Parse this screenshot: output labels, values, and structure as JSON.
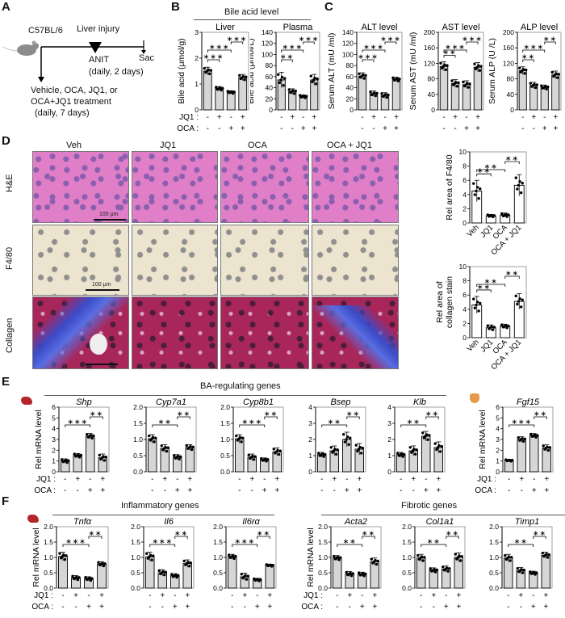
{
  "panels": {
    "A": {
      "label": "A",
      "strain": "C57BL/6",
      "injury_label": "Liver injury",
      "anit_label": "ANIT",
      "anit_schedule": "(daily, 2 days)",
      "sac_label": "Sac",
      "treatment_line1": "Vehicle, OCA, JQ1, or",
      "treatment_line2": "OCA+JQ1 treatment",
      "treatment_line3": "(daily, 7 days)"
    },
    "B": {
      "label": "B",
      "group_title": "Bile acid level"
    },
    "C": {
      "label": "C"
    },
    "D": {
      "label": "D",
      "columns": [
        "Veh",
        "JQ1",
        "OCA",
        "OCA + JQ1"
      ],
      "rows": [
        "H&E",
        "F4/80",
        "Collagen"
      ],
      "scale_bar": "100 μm"
    },
    "E": {
      "label": "E",
      "group_title": "BA-regulating genes"
    },
    "F": {
      "label": "F",
      "group_title_left": "Inflammatory genes",
      "group_title_right": "Fibrotic genes"
    }
  },
  "treatment_rows": {
    "jq1_label": "JQ1 :",
    "oca_label": "OCA :",
    "jq1": [
      "-",
      "+",
      "-",
      "+"
    ],
    "oca": [
      "-",
      "-",
      "+",
      "+"
    ]
  },
  "chart_data": [
    {
      "id": "B-liver",
      "type": "bar",
      "title": "Liver",
      "ylabel": "Bile acid (μmol/g)",
      "ylim": [
        0,
        3
      ],
      "yticks": [
        0,
        1,
        2,
        3
      ],
      "categories": [
        "Veh",
        "JQ1",
        "OCA",
        "OCA+JQ1"
      ],
      "values": [
        1.5,
        0.82,
        0.68,
        1.25
      ],
      "errors": [
        0.15,
        0.08,
        0.06,
        0.12
      ],
      "significance": [
        {
          "from": 0,
          "to": 1,
          "label": "***"
        },
        {
          "from": 0,
          "to": 2,
          "label": "***"
        },
        {
          "from": 2,
          "to": 3,
          "label": "***"
        }
      ]
    },
    {
      "id": "B-plasma",
      "type": "bar",
      "title": "Plasma",
      "ylabel": "Bile acid (μmol/L)",
      "ylim": [
        0,
        140
      ],
      "yticks": [
        0,
        20,
        40,
        60,
        80,
        100,
        120,
        140
      ],
      "categories": [
        "Veh",
        "JQ1",
        "OCA",
        "OCA+JQ1"
      ],
      "values": [
        54,
        33,
        24,
        54
      ],
      "errors": [
        14,
        5,
        3,
        10
      ],
      "significance": [
        {
          "from": 0,
          "to": 1,
          "label": "**"
        },
        {
          "from": 0,
          "to": 2,
          "label": "***"
        },
        {
          "from": 2,
          "to": 3,
          "label": "***"
        }
      ]
    },
    {
      "id": "C-alt",
      "type": "bar",
      "title": "ALT level",
      "ylabel": "Serum ALT (mU /ml)",
      "ylim": [
        0,
        140
      ],
      "yticks": [
        0,
        20,
        40,
        60,
        80,
        100,
        120,
        140
      ],
      "categories": [
        "Veh",
        "JQ1",
        "OCA",
        "OCA+JQ1"
      ],
      "values": [
        61,
        29,
        26,
        55
      ],
      "errors": [
        6,
        5,
        5,
        4
      ],
      "significance": [
        {
          "from": 0,
          "to": 1,
          "label": "***"
        },
        {
          "from": 0,
          "to": 2,
          "label": "***"
        },
        {
          "from": 2,
          "to": 3,
          "label": "***"
        }
      ]
    },
    {
      "id": "C-ast",
      "type": "bar",
      "title": "AST level",
      "ylabel": "Serum AST (mU /ml)",
      "ylim": [
        0,
        200
      ],
      "yticks": [
        0,
        40,
        80,
        120,
        160,
        200
      ],
      "categories": [
        "Veh",
        "JQ1",
        "OCA",
        "OCA+JQ1"
      ],
      "values": [
        112,
        68,
        65,
        110
      ],
      "errors": [
        12,
        10,
        10,
        12
      ],
      "significance": [
        {
          "from": 0,
          "to": 1,
          "label": "**"
        },
        {
          "from": 0,
          "to": 2,
          "label": "***"
        },
        {
          "from": 2,
          "to": 3,
          "label": "***"
        }
      ]
    },
    {
      "id": "C-alp",
      "type": "bar",
      "title": "ALP level",
      "ylabel": "Serum ALP (U /L)",
      "ylim": [
        0,
        200
      ],
      "yticks": [
        0,
        40,
        80,
        120,
        160,
        200
      ],
      "categories": [
        "Veh",
        "JQ1",
        "OCA",
        "OCA+JQ1"
      ],
      "values": [
        101,
        63,
        58,
        90
      ],
      "errors": [
        10,
        8,
        6,
        10
      ],
      "significance": [
        {
          "from": 0,
          "to": 1,
          "label": "**"
        },
        {
          "from": 0,
          "to": 2,
          "label": "***"
        },
        {
          "from": 2,
          "to": 3,
          "label": "**"
        }
      ]
    },
    {
      "id": "D-f480",
      "type": "bar",
      "ylabel": "Rel area of F4/80",
      "ylim": [
        0,
        10
      ],
      "yticks": [
        0,
        2,
        4,
        6,
        8,
        10
      ],
      "categories": [
        "Veh",
        "JQ1",
        "OCA",
        "OCA + JQ1"
      ],
      "values": [
        4.5,
        1.0,
        1.1,
        5.3
      ],
      "errors": [
        1.5,
        0.2,
        0.3,
        1.5
      ],
      "white_bars": true,
      "significance": [
        {
          "from": 0,
          "to": 1,
          "label": "**"
        },
        {
          "from": 0,
          "to": 2,
          "label": "**"
        },
        {
          "from": 2,
          "to": 3,
          "label": "**"
        }
      ]
    },
    {
      "id": "D-collagen",
      "type": "bar",
      "ylabel": "Rel area of collagen stain",
      "ylim": [
        0,
        10
      ],
      "yticks": [
        0,
        2,
        4,
        6,
        8,
        10
      ],
      "categories": [
        "Veh",
        "JQ1",
        "OCA",
        "OCA + JQ1"
      ],
      "values": [
        4.6,
        1.4,
        1.6,
        5.1
      ],
      "errors": [
        1.2,
        0.4,
        0.3,
        1.1
      ],
      "white_bars": true,
      "significance": [
        {
          "from": 0,
          "to": 1,
          "label": "**"
        },
        {
          "from": 0,
          "to": 2,
          "label": "**"
        },
        {
          "from": 2,
          "to": 3,
          "label": "**"
        }
      ]
    },
    {
      "id": "E-shp",
      "type": "bar",
      "title": "Shp",
      "ylabel": "Rel mRNA level",
      "ylim": [
        0,
        6
      ],
      "yticks": [
        0,
        1,
        2,
        3,
        4,
        5,
        6
      ],
      "categories": [
        "Veh",
        "JQ1",
        "OCA",
        "OCA+JQ1"
      ],
      "values": [
        1.0,
        1.5,
        3.3,
        1.3
      ],
      "errors": [
        0.2,
        0.2,
        0.25,
        0.35
      ],
      "significance": [
        {
          "from": 0,
          "to": 2,
          "label": "***"
        },
        {
          "from": 2,
          "to": 3,
          "label": "**"
        }
      ]
    },
    {
      "id": "E-cyp7a1",
      "type": "bar",
      "title": "Cyp7a1",
      "ylim": [
        0,
        2
      ],
      "yticks": [
        0,
        0.5,
        1.0,
        1.5,
        2.0
      ],
      "categories": [
        "Veh",
        "JQ1",
        "OCA",
        "OCA+JQ1"
      ],
      "values": [
        1.02,
        0.72,
        0.45,
        0.75
      ],
      "errors": [
        0.13,
        0.12,
        0.08,
        0.09
      ],
      "significance": [
        {
          "from": 0,
          "to": 2,
          "label": "**"
        },
        {
          "from": 2,
          "to": 3,
          "label": "**"
        }
      ]
    },
    {
      "id": "E-cyp8b1",
      "type": "bar",
      "title": "Cyp8b1",
      "ylim": [
        0,
        2
      ],
      "yticks": [
        0,
        0.5,
        1.0,
        1.5,
        2.0
      ],
      "categories": [
        "Veh",
        "JQ1",
        "OCA",
        "OCA+JQ1"
      ],
      "values": [
        1.02,
        0.45,
        0.37,
        0.62
      ],
      "errors": [
        0.13,
        0.1,
        0.06,
        0.12
      ],
      "significance": [
        {
          "from": 0,
          "to": 2,
          "label": "***"
        },
        {
          "from": 2,
          "to": 3,
          "label": "**"
        }
      ]
    },
    {
      "id": "E-bsep",
      "type": "bar",
      "title": "Bsep",
      "ylim": [
        0,
        4
      ],
      "yticks": [
        0,
        1,
        2,
        3,
        4
      ],
      "categories": [
        "Veh",
        "JQ1",
        "OCA",
        "OCA+JQ1"
      ],
      "values": [
        1.05,
        1.3,
        2.0,
        1.4
      ],
      "errors": [
        0.15,
        0.3,
        0.45,
        0.35
      ],
      "significance": [
        {
          "from": 0,
          "to": 2,
          "label": "**"
        },
        {
          "from": 2,
          "to": 3,
          "label": "**"
        }
      ]
    },
    {
      "id": "E-klb",
      "type": "bar",
      "title": "Klb",
      "ylim": [
        0,
        4
      ],
      "yticks": [
        0,
        1,
        2,
        3,
        4
      ],
      "categories": [
        "Veh",
        "JQ1",
        "OCA",
        "OCA+JQ1"
      ],
      "values": [
        1.05,
        1.3,
        2.2,
        1.5
      ],
      "errors": [
        0.15,
        0.3,
        0.3,
        0.35
      ],
      "significance": [
        {
          "from": 0,
          "to": 2,
          "label": "**"
        },
        {
          "from": 2,
          "to": 3,
          "label": "**"
        }
      ]
    },
    {
      "id": "E-fgf15",
      "type": "bar",
      "title": "Fgf15",
      "ylabel": "Rel mRNA level",
      "ylim": [
        0,
        6
      ],
      "yticks": [
        0,
        1,
        2,
        3,
        4,
        5,
        6
      ],
      "categories": [
        "Veh",
        "JQ1",
        "OCA",
        "OCA+JQ1"
      ],
      "values": [
        1.05,
        3.0,
        3.35,
        2.2
      ],
      "errors": [
        0.1,
        0.25,
        0.2,
        0.3
      ],
      "significance": [
        {
          "from": 0,
          "to": 2,
          "label": "***"
        },
        {
          "from": 2,
          "to": 3,
          "label": "**"
        }
      ]
    },
    {
      "id": "F-tnfa",
      "type": "bar",
      "title": "Tnfα",
      "ylabel": "Rel mRNA level",
      "ylim": [
        0,
        2
      ],
      "yticks": [
        0,
        0.5,
        1.0,
        1.5,
        2.0
      ],
      "categories": [
        "Veh",
        "JQ1",
        "OCA",
        "OCA+JQ1"
      ],
      "values": [
        1.03,
        0.33,
        0.3,
        0.78
      ],
      "errors": [
        0.14,
        0.08,
        0.07,
        0.08
      ],
      "significance": [
        {
          "from": 0,
          "to": 2,
          "label": "***"
        },
        {
          "from": 2,
          "to": 3,
          "label": "**"
        }
      ]
    },
    {
      "id": "F-il6",
      "type": "bar",
      "title": "Il6",
      "ylim": [
        0,
        2
      ],
      "yticks": [
        0,
        0.5,
        1.0,
        1.5,
        2.0
      ],
      "categories": [
        "Veh",
        "JQ1",
        "OCA",
        "OCA+JQ1"
      ],
      "values": [
        1.02,
        0.5,
        0.4,
        0.8
      ],
      "errors": [
        0.15,
        0.1,
        0.07,
        0.12
      ],
      "significance": [
        {
          "from": 0,
          "to": 2,
          "label": "***"
        },
        {
          "from": 2,
          "to": 3,
          "label": "**"
        }
      ]
    },
    {
      "id": "F-il6ra",
      "type": "bar",
      "title": "Il6rα",
      "ylim": [
        0,
        2
      ],
      "yticks": [
        0,
        0.5,
        1.0,
        1.5,
        2.0
      ],
      "categories": [
        "Veh",
        "JQ1",
        "OCA",
        "OCA+JQ1"
      ],
      "values": [
        1.02,
        0.37,
        0.27,
        0.74
      ],
      "errors": [
        0.08,
        0.12,
        0.05,
        0.04
      ],
      "significance": [
        {
          "from": 0,
          "to": 2,
          "label": "***"
        },
        {
          "from": 2,
          "to": 3,
          "label": "**"
        }
      ]
    },
    {
      "id": "F-acta2",
      "type": "bar",
      "title": "Acta2",
      "ylabel": "Rel mRNA level",
      "ylim": [
        0,
        2
      ],
      "yticks": [
        0,
        0.5,
        1.0,
        1.5,
        2.0
      ],
      "categories": [
        "Veh",
        "JQ1",
        "OCA",
        "OCA+JQ1"
      ],
      "values": [
        0.98,
        0.46,
        0.45,
        0.86
      ],
      "errors": [
        0.08,
        0.08,
        0.07,
        0.12
      ],
      "significance": [
        {
          "from": 0,
          "to": 2,
          "label": "**"
        },
        {
          "from": 2,
          "to": 3,
          "label": "**"
        }
      ]
    },
    {
      "id": "F-col1a1",
      "type": "bar",
      "title": "Col1a1",
      "ylim": [
        0,
        2
      ],
      "yticks": [
        0,
        0.5,
        1.0,
        1.5,
        2.0
      ],
      "categories": [
        "Veh",
        "JQ1",
        "OCA",
        "OCA+JQ1"
      ],
      "values": [
        0.98,
        0.58,
        0.62,
        1.0
      ],
      "errors": [
        0.12,
        0.08,
        0.1,
        0.15
      ],
      "significance": [
        {
          "from": 0,
          "to": 2,
          "label": "**"
        },
        {
          "from": 2,
          "to": 3,
          "label": "**"
        }
      ]
    },
    {
      "id": "F-timp1",
      "type": "bar",
      "title": "Timp1",
      "ylim": [
        0,
        2
      ],
      "yticks": [
        0,
        0.5,
        1.0,
        1.5,
        2.0
      ],
      "categories": [
        "Veh",
        "JQ1",
        "OCA",
        "OCA+JQ1"
      ],
      "values": [
        0.98,
        0.57,
        0.49,
        1.07
      ],
      "errors": [
        0.12,
        0.1,
        0.06,
        0.1
      ],
      "significance": [
        {
          "from": 0,
          "to": 2,
          "label": "**"
        },
        {
          "from": 2,
          "to": 3,
          "label": "**"
        }
      ]
    }
  ]
}
